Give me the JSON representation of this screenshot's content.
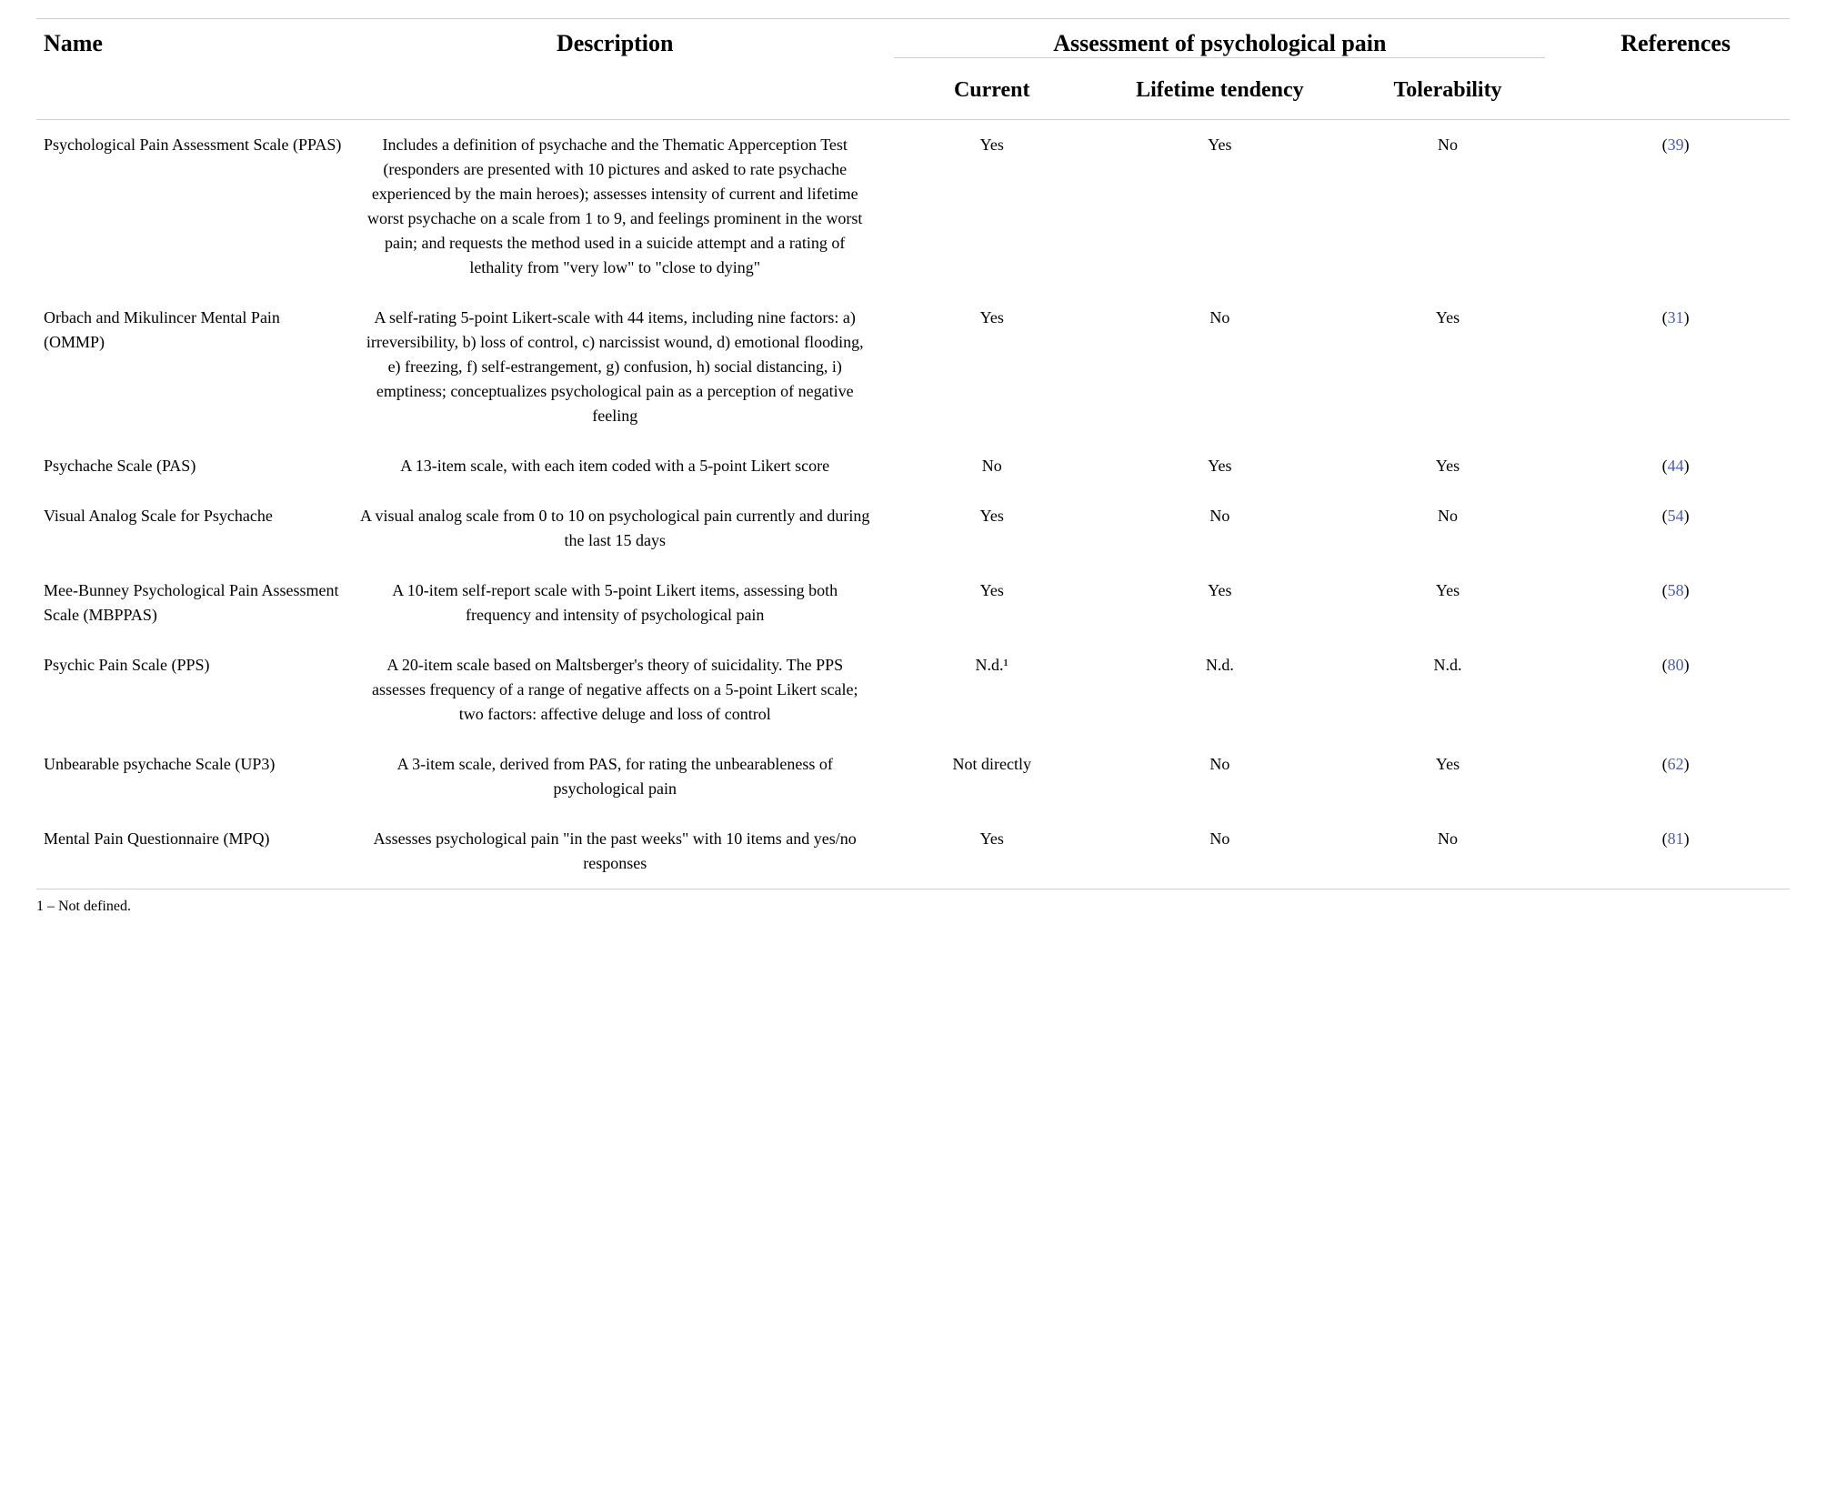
{
  "headers": {
    "name": "Name",
    "description": "Description",
    "assessment_group": "Assessment of psychological pain",
    "current": "Current",
    "lifetime": "Lifetime tendency",
    "tolerability": "Tolerability",
    "references": "References"
  },
  "rows": [
    {
      "name": "Psychological Pain Assessment Scale (PPAS)",
      "description": "Includes a definition of psychache and the Thematic Apperception Test (responders are presented with 10 pictures and asked to rate psychache experienced by the main heroes); assesses intensity of current and lifetime worst psychache on a scale from 1 to 9, and feelings prominent in the worst pain; and requests the method used in a suicide attempt and a rating of lethality from \"very low\" to \"close to dying\"",
      "current": "Yes",
      "lifetime": "Yes",
      "tolerability": "No",
      "ref": "39"
    },
    {
      "name": "Orbach and Mikulincer Mental Pain (OMMP)",
      "description": "A self-rating 5-point Likert-scale with 44 items, including nine factors: a) irreversibility, b) loss of control, c) narcissist wound, d) emotional flooding, e) freezing, f) self-estrangement, g) confusion, h) social distancing, i) emptiness; conceptualizes psychological pain as a perception of negative feeling",
      "current": "Yes",
      "lifetime": "No",
      "tolerability": "Yes",
      "ref": "31"
    },
    {
      "name": "Psychache Scale (PAS)",
      "description": "A 13-item scale, with each item coded with a 5-point Likert score",
      "current": "No",
      "lifetime": "Yes",
      "tolerability": "Yes",
      "ref": "44"
    },
    {
      "name": "Visual Analog Scale for Psychache",
      "description": "A visual analog scale from 0 to 10 on psychological pain currently and during the last 15 days",
      "current": "Yes",
      "lifetime": "No",
      "tolerability": "No",
      "ref": "54"
    },
    {
      "name": "Mee-Bunney Psychological Pain Assessment Scale (MBPPAS)",
      "description": "A 10-item self-report scale with 5-point Likert items, assessing both frequency and intensity of psychological pain",
      "current": "Yes",
      "lifetime": "Yes",
      "tolerability": "Yes",
      "ref": "58"
    },
    {
      "name": "Psychic Pain Scale (PPS)",
      "description": "A 20-item scale based on Maltsberger's theory of suicidality. The PPS assesses frequency of a range of negative affects on a 5-point Likert scale; two factors: affective deluge and loss of control",
      "current": "N.d.¹",
      "lifetime": "N.d.",
      "tolerability": "N.d.",
      "ref": "80"
    },
    {
      "name": "Unbearable psychache Scale (UP3)",
      "description": "A 3-item scale, derived from PAS, for rating the unbearableness of psychological pain",
      "current": "Not directly",
      "lifetime": "No",
      "tolerability": "Yes",
      "ref": "62"
    },
    {
      "name": "Mental Pain Questionnaire (MPQ)",
      "description": "Assesses psychological pain \"in the past weeks\" with 10 items and yes/no responses",
      "current": "Yes",
      "lifetime": "No",
      "tolerability": "No",
      "ref": "81"
    }
  ],
  "footnote": "1 – Not defined."
}
